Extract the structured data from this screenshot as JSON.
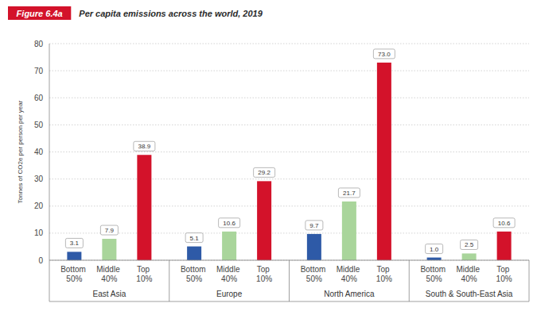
{
  "chart_data": {
    "type": "bar",
    "figure_label": "Figure 6.4a",
    "title": "Per capita emissions across the world, 2019",
    "y_label": "Tonnes of CO2e per person per year",
    "categories": [
      "East Asia",
      "Europe",
      "North America",
      "South & South-East Asia"
    ],
    "series": [
      {
        "name": "Bottom 50%",
        "color": "#2e5aa7",
        "values": [
          3.1,
          5.1,
          9.7,
          1.0
        ],
        "value_labels": [
          "3.1",
          "5.1",
          "9.7",
          "1.0"
        ]
      },
      {
        "name": "Middle 40%",
        "color": "#a9d59b",
        "values": [
          7.9,
          10.6,
          21.7,
          2.5
        ],
        "value_labels": [
          "7.9",
          "10.6",
          "21.7",
          "2.5"
        ]
      },
      {
        "name": "Top 10%",
        "color": "#d3122a",
        "values": [
          38.9,
          29.2,
          73.0,
          10.6
        ],
        "value_labels": [
          "38.9",
          "29.2",
          "73.0",
          "10.6"
        ]
      }
    ],
    "ylim": [
      0,
      80
    ],
    "yticks": [
      0,
      10,
      20,
      30,
      40,
      50,
      60,
      70,
      80
    ],
    "grid": true,
    "data_labels": true
  }
}
